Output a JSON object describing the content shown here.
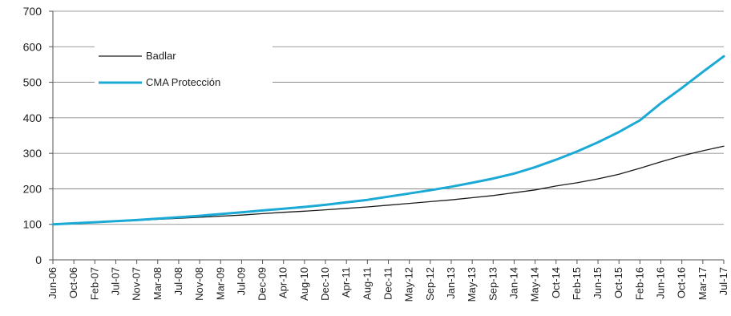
{
  "chart_data": {
    "type": "line",
    "title": "",
    "xlabel": "",
    "ylabel": "",
    "ylim": [
      0,
      700
    ],
    "y_ticks": [
      0,
      100,
      200,
      300,
      400,
      500,
      600,
      700
    ],
    "grid": "horizontal",
    "legend_placement": "top-left",
    "categories": [
      "Jun-06",
      "Oct-06",
      "Feb-07",
      "Jul-07",
      "Nov-07",
      "Mar-08",
      "Jul-08",
      "Nov-08",
      "Mar-09",
      "Jul-09",
      "Dec-09",
      "Apr-10",
      "Aug-10",
      "Dec-10",
      "Apr-11",
      "Aug-11",
      "Dec-11",
      "May-12",
      "Sep-12",
      "Jan-13",
      "May-13",
      "Sep-13",
      "Jan-14",
      "May-14",
      "Oct-14",
      "Feb-15",
      "Jun-15",
      "Oct-15",
      "Feb-16",
      "Jun-16",
      "Oct-16",
      "Mar-17",
      "Jul-17"
    ],
    "series": [
      {
        "name": "Badlar",
        "color": "#1a1a1a",
        "values": [
          100,
          103,
          106,
          108,
          111,
          114,
          117,
          120,
          123,
          126,
          130,
          134,
          137,
          141,
          145,
          149,
          154,
          159,
          164,
          169,
          175,
          181,
          189,
          197,
          208,
          217,
          228,
          241,
          258,
          276,
          293,
          307,
          320
        ]
      },
      {
        "name": "CMA Protección",
        "color": "#1ba9d6",
        "values": [
          100,
          103,
          106,
          109,
          112,
          116,
          120,
          124,
          129,
          134,
          139,
          144,
          149,
          155,
          162,
          169,
          178,
          187,
          196,
          206,
          217,
          229,
          243,
          261,
          282,
          305,
          331,
          360,
          393,
          441,
          484,
          529,
          573
        ]
      }
    ]
  }
}
